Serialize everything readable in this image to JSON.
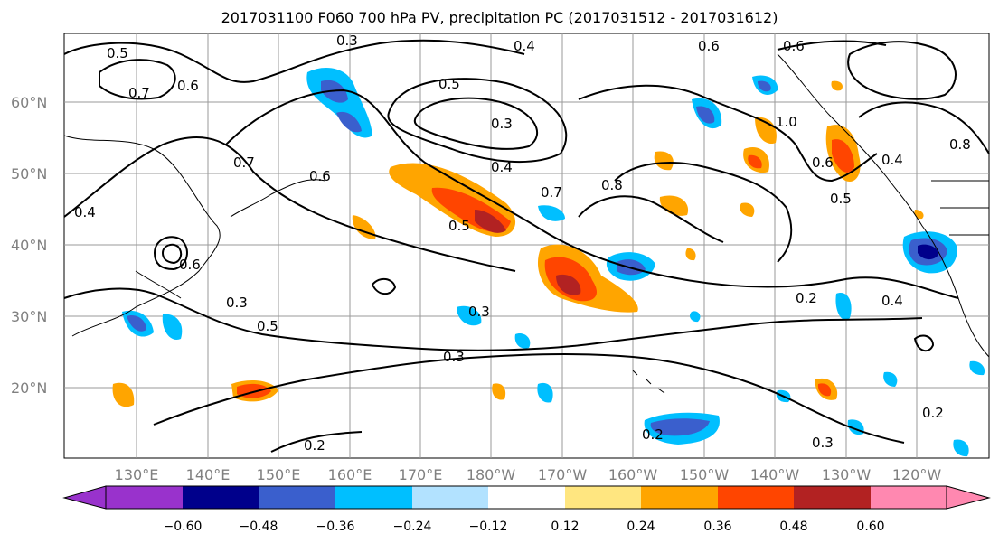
{
  "title": "2017031100 F060 700 hPa PV, precipitation PC (2017031512 - 2017031612)",
  "latitude_labels": [
    "60°N",
    "50°N",
    "40°N",
    "30°N",
    "20°N"
  ],
  "longitude_labels": [
    "130°E",
    "140°E",
    "150°E",
    "160°E",
    "170°E",
    "180°W",
    "170°W",
    "160°W",
    "150°W",
    "140°W",
    "130°W",
    "120°W"
  ],
  "contour_labels": [
    "0.5",
    "0.3",
    "0.4",
    "0.6",
    "0.6",
    "0.7",
    "0.6",
    "0.5",
    "0.3",
    "0.4",
    "0.7",
    "0.8",
    "1.0",
    "0.8",
    "0.4",
    "0.5",
    "0.6",
    "0.6",
    "0.7",
    "0.4",
    "0.5",
    "0.6",
    "0.3",
    "0.5",
    "0.3",
    "0.3",
    "0.2",
    "0.4",
    "0.2",
    "0.2",
    "0.3",
    "0.2"
  ],
  "colorbar": {
    "tick_labels": [
      "−0.60",
      "−0.48",
      "−0.36",
      "−0.24",
      "−0.12",
      "0.12",
      "0.24",
      "0.36",
      "0.48",
      "0.60"
    ],
    "colors": [
      "#9932cc",
      "#00008b",
      "#3a5fcd",
      "#00bfff",
      "#b2e2ff",
      "#ffffff",
      "#ffe680",
      "#ffa500",
      "#ff4500",
      "#b22222",
      "#ff88b0"
    ]
  }
}
